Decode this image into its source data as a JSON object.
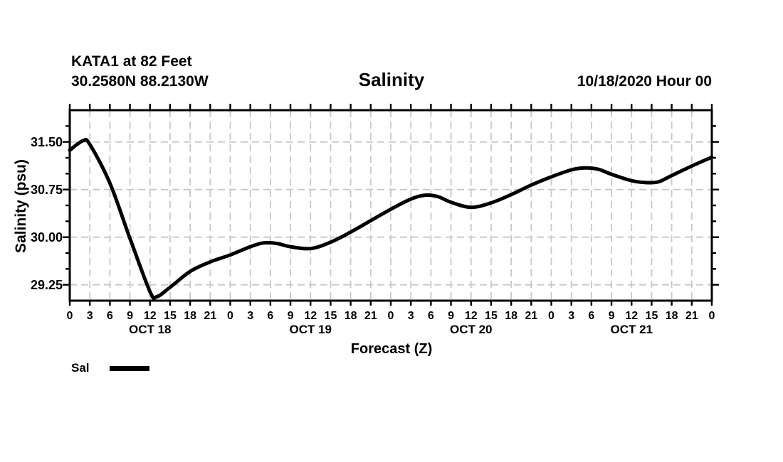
{
  "header": {
    "station_line1": "KATA1 at 82 Feet",
    "station_line2": "30.2580N 88.2130W",
    "run_date": "10/18/2020 Hour 00"
  },
  "chart_data": {
    "type": "line",
    "title": "Salinity",
    "xlabel": "Forecast (Z)",
    "ylabel": "Salinity (psu)",
    "ylim": [
      29.0,
      32.0
    ],
    "y_major_ticks": [
      29.25,
      30.0,
      30.75,
      31.5
    ],
    "y_tick_labels": [
      "29.25",
      "30.00",
      "30.75",
      "31.50"
    ],
    "y_minor_step": 0.25,
    "x_hours_range": [
      0,
      96
    ],
    "x_tick_step_hours": 3,
    "x_tick_labels": [
      "0",
      "3",
      "6",
      "9",
      "12",
      "15",
      "18",
      "21",
      "0",
      "3",
      "6",
      "9",
      "12",
      "15",
      "18",
      "21",
      "0",
      "3",
      "6",
      "9",
      "12",
      "15",
      "18",
      "21",
      "0",
      "3",
      "6",
      "9",
      "12",
      "15",
      "18",
      "21",
      "0"
    ],
    "day_labels": [
      {
        "label": "OCT 18",
        "center_hour": 12
      },
      {
        "label": "OCT 19",
        "center_hour": 36
      },
      {
        "label": "OCT 20",
        "center_hour": 60
      },
      {
        "label": "OCT 21",
        "center_hour": 84
      }
    ],
    "grid": {
      "vertical_every_hours": 3,
      "horizontal_at_major_ticks": true,
      "style": "dashed",
      "color": "#c8c8c8"
    },
    "legend": {
      "position": "bottom-left"
    },
    "series": [
      {
        "name": "Sal",
        "color": "#000000",
        "points": [
          [
            0,
            31.37
          ],
          [
            2,
            31.52
          ],
          [
            3,
            31.46
          ],
          [
            6,
            30.85
          ],
          [
            9,
            29.98
          ],
          [
            12,
            29.14
          ],
          [
            13,
            29.06
          ],
          [
            15,
            29.21
          ],
          [
            18,
            29.46
          ],
          [
            21,
            29.61
          ],
          [
            24,
            29.72
          ],
          [
            27,
            29.85
          ],
          [
            29,
            29.91
          ],
          [
            31,
            29.9
          ],
          [
            33,
            29.85
          ],
          [
            36,
            29.82
          ],
          [
            39,
            29.92
          ],
          [
            42,
            30.08
          ],
          [
            45,
            30.26
          ],
          [
            48,
            30.44
          ],
          [
            51,
            30.6
          ],
          [
            53,
            30.66
          ],
          [
            55,
            30.64
          ],
          [
            57,
            30.55
          ],
          [
            60,
            30.47
          ],
          [
            63,
            30.54
          ],
          [
            66,
            30.67
          ],
          [
            69,
            30.82
          ],
          [
            72,
            30.95
          ],
          [
            75,
            31.06
          ],
          [
            77,
            31.09
          ],
          [
            79,
            31.07
          ],
          [
            81,
            30.99
          ],
          [
            84,
            30.89
          ],
          [
            86,
            30.86
          ],
          [
            88,
            30.87
          ],
          [
            90,
            30.97
          ],
          [
            93,
            31.12
          ],
          [
            96,
            31.26
          ]
        ]
      }
    ]
  }
}
